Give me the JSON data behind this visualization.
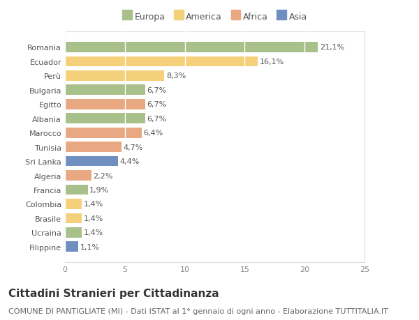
{
  "countries": [
    "Romania",
    "Ecuador",
    "Perù",
    "Bulgaria",
    "Egitto",
    "Albania",
    "Marocco",
    "Tunisia",
    "Sri Lanka",
    "Algeria",
    "Francia",
    "Colombia",
    "Brasile",
    "Ucraina",
    "Filippine"
  ],
  "values": [
    21.1,
    16.1,
    8.3,
    6.7,
    6.7,
    6.7,
    6.4,
    4.7,
    4.4,
    2.2,
    1.9,
    1.4,
    1.4,
    1.4,
    1.1
  ],
  "labels": [
    "21,1%",
    "16,1%",
    "8,3%",
    "6,7%",
    "6,7%",
    "6,7%",
    "6,4%",
    "4,7%",
    "4,4%",
    "2,2%",
    "1,9%",
    "1,4%",
    "1,4%",
    "1,4%",
    "1,1%"
  ],
  "regions": [
    "Europa",
    "America",
    "America",
    "Europa",
    "Africa",
    "Europa",
    "Africa",
    "Africa",
    "Asia",
    "Africa",
    "Europa",
    "America",
    "America",
    "Europa",
    "Asia"
  ],
  "colors": {
    "Europa": "#a8c08a",
    "America": "#f5d07a",
    "Africa": "#e8a882",
    "Asia": "#6e8fbf"
  },
  "legend_labels": [
    "Europa",
    "America",
    "Africa",
    "Asia"
  ],
  "legend_colors": [
    "#a8c08a",
    "#f5d07a",
    "#e8a882",
    "#6e8fbf"
  ],
  "title": "Cittadini Stranieri per Cittadinanza",
  "subtitle": "COMUNE DI PANTIGLIATE (MI) - Dati ISTAT al 1° gennaio di ogni anno - Elaborazione TUTTITALIA.IT",
  "xlim": [
    0,
    25
  ],
  "xticks": [
    0,
    5,
    10,
    15,
    20,
    25
  ],
  "background_color": "#ffffff",
  "grid_color": "#ffffff",
  "bar_height": 0.72,
  "title_fontsize": 11,
  "subtitle_fontsize": 8,
  "label_fontsize": 8,
  "tick_fontsize": 8,
  "legend_fontsize": 9
}
